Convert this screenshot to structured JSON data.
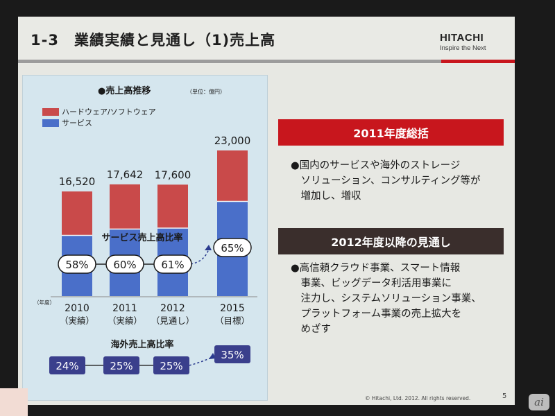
{
  "slide": {
    "title": "1-3　業績実績と見通し（1)売上高",
    "logo": {
      "name": "HITACHI",
      "tagline": "Inspire the Next"
    },
    "summary_banner": "2011年度総括",
    "summary_text": "●国内のサービスや海外のストレージ\n　ソリューション、コンサルティング等が\n　増加し、増収",
    "outlook_banner": "2012年度以降の見通し",
    "outlook_text": "●高信頼クラウド事業、スマート情報\n　事業、ビッグデータ利活用事業に\n　注力し、システムソリューション事業、\n　プラットフォーム事業の売上拡大を\n　めざす",
    "footer": "© Hitachi, Ltd. 2012. All rights reserved.",
    "page_number": "5",
    "watermark": "ai"
  },
  "chart_data": {
    "type": "bar",
    "title": "●売上高推移",
    "unit": "（単位：億円）",
    "year_axis_label": "（年度）",
    "categories": [
      "2010",
      "2011",
      "2012",
      "2015"
    ],
    "category_notes": [
      "（実績）",
      "（実績）",
      "（見通し）",
      "（目標）"
    ],
    "totals": [
      16520,
      17642,
      17600,
      23000
    ],
    "total_labels": [
      "16,520",
      "17,642",
      "17,600",
      "23,000"
    ],
    "series": [
      {
        "name": "サービス",
        "color": "#4a6fc9",
        "values": [
          9582,
          10585,
          10736,
          14950
        ]
      },
      {
        "name": "ハードウェア/ソフトウェア",
        "color": "#c94a4a",
        "values": [
          6938,
          7057,
          6864,
          8050
        ]
      }
    ],
    "legend": [
      "ハードウェア/ソフトウェア",
      "サービス"
    ],
    "legend_position": "top-left",
    "service_ratio_label": "サービス売上高比率",
    "service_ratio": [
      "58%",
      "60%",
      "61%",
      "65%"
    ],
    "overseas_ratio_label": "海外売上高比率",
    "overseas_ratio": [
      "24%",
      "25%",
      "25%",
      "35%"
    ],
    "ylim": [
      0,
      23000
    ]
  }
}
